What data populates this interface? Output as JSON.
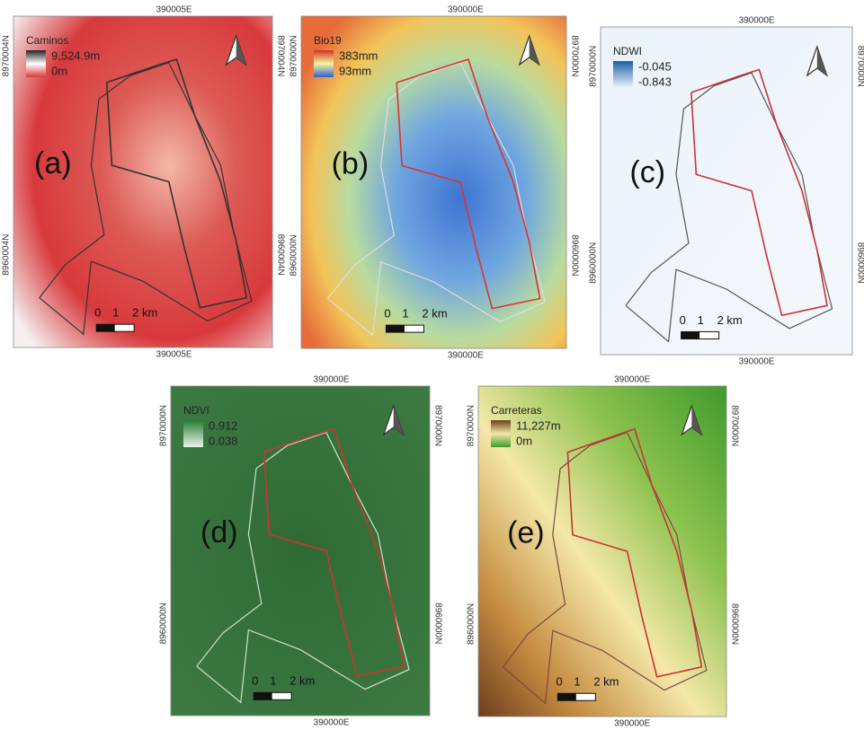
{
  "panels": [
    {
      "label": "(a)",
      "legend_title": "Caminos",
      "legend_max": "9,524.9m",
      "legend_min": "0m",
      "top_coord": "390005E",
      "bottom_coord": "390005E",
      "left_coords": [
        "8970004N",
        "8960004N"
      ],
      "right_coords": [
        "8970004N",
        "8960004N"
      ],
      "scale_labels": [
        "0",
        "1",
        "2 km"
      ]
    },
    {
      "label": "(b)",
      "legend_title": "Bio19",
      "legend_max": "383mm",
      "legend_min": "93mm",
      "top_coord": "390000E",
      "bottom_coord": "390000E",
      "left_coords": [
        "8970000N",
        "8960000N"
      ],
      "right_coords": [
        "8970000N",
        "8960000N"
      ],
      "scale_labels": [
        "0",
        "1",
        "2 km"
      ]
    },
    {
      "label": "(c)",
      "legend_title": "NDWI",
      "legend_max": "-0.045",
      "legend_min": "-0.843",
      "top_coord": "390000E",
      "bottom_coord": "390000E",
      "left_coords": [
        "8970000N",
        "8960000N"
      ],
      "right_coords": [
        "8970000N",
        "8960000N"
      ],
      "scale_labels": [
        "0",
        "1",
        "2 km"
      ]
    },
    {
      "label": "(d)",
      "legend_title": "NDVI",
      "legend_max": "0.912",
      "legend_min": "0.038",
      "top_coord": "390000E",
      "bottom_coord": "390000E",
      "left_coords": [
        "8970000N",
        "8960000N"
      ],
      "right_coords": [
        "8970000N",
        "8960000N"
      ],
      "scale_labels": [
        "0",
        "1",
        "2 km"
      ]
    },
    {
      "label": "(e)",
      "legend_title": "Carreteras",
      "legend_max": "11,227m",
      "legend_min": "0m",
      "top_coord": "390000E",
      "bottom_coord": "390000E",
      "left_coords": [
        "8970000N",
        "8960000N"
      ],
      "right_coords": [
        "8970000N",
        "8960000N"
      ],
      "scale_labels": [
        "0",
        "1",
        "2 km"
      ]
    }
  ]
}
